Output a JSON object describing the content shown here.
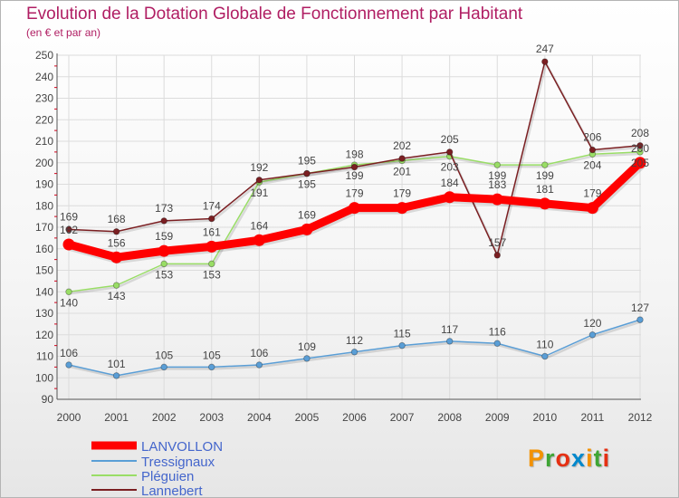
{
  "title": "Evolution de la Dotation Globale de Fonctionnement par Habitant",
  "subtitle": "(en € et par an)",
  "logo": {
    "text": "Proxiti",
    "letters": [
      "P",
      "r",
      "o",
      "x",
      "i",
      "t",
      "i"
    ],
    "colors": [
      "#f39200",
      "#3fa535",
      "#e53013",
      "#0088cc",
      "#f39200",
      "#3fa535",
      "#e53013"
    ]
  },
  "chart_data": {
    "type": "line",
    "title": "Evolution de la Dotation Globale de Fonctionnement par Habitant",
    "subtitle": "(en € et par an)",
    "xlabel": "",
    "ylabel": "",
    "ylim": [
      90,
      250
    ],
    "yticks": [
      90,
      100,
      110,
      120,
      130,
      140,
      150,
      160,
      170,
      180,
      190,
      200,
      210,
      220,
      230,
      240,
      250
    ],
    "categories": [
      "2000",
      "2001",
      "2002",
      "2003",
      "2004",
      "2005",
      "2006",
      "2007",
      "2008",
      "2009",
      "2010",
      "2011",
      "2012"
    ],
    "grid": true,
    "legend_position": "bottom-left",
    "series": [
      {
        "name": "LANVOLLON",
        "color": "#ff0000",
        "values": [
          162,
          156,
          159,
          161,
          164,
          169,
          179,
          179,
          184,
          183,
          181,
          179,
          200
        ]
      },
      {
        "name": "Tressignaux",
        "color": "#5a9ed6",
        "values": [
          106,
          101,
          105,
          105,
          106,
          109,
          112,
          115,
          117,
          116,
          110,
          120,
          127
        ]
      },
      {
        "name": "Pléguien",
        "color": "#99dd66",
        "values": [
          140,
          143,
          153,
          153,
          191,
          195,
          199,
          201,
          203,
          199,
          199,
          204,
          205
        ]
      },
      {
        "name": "Lannebert",
        "color": "#7b1f22",
        "values": [
          169,
          168,
          173,
          174,
          192,
          195,
          198,
          202,
          205,
          157,
          247,
          206,
          208
        ]
      }
    ]
  }
}
